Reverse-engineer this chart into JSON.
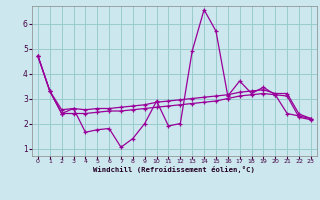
{
  "xlabel": "Windchill (Refroidissement éolien,°C)",
  "bg_color": "#cce8ee",
  "line_color": "#990099",
  "grid_color": "#99cccc",
  "xlim": [
    -0.5,
    23.5
  ],
  "ylim": [
    0.7,
    6.7
  ],
  "yticks": [
    1,
    2,
    3,
    4,
    5,
    6
  ],
  "xticks": [
    0,
    1,
    2,
    3,
    4,
    5,
    6,
    7,
    8,
    9,
    10,
    11,
    12,
    13,
    14,
    15,
    16,
    17,
    18,
    19,
    20,
    21,
    22,
    23
  ],
  "line1_x": [
    0,
    1,
    2,
    3,
    4,
    5,
    6,
    7,
    8,
    9,
    10,
    11,
    12,
    13,
    14,
    15,
    16,
    17,
    18,
    19,
    20,
    21,
    22,
    23
  ],
  "line1_y": [
    4.7,
    3.3,
    2.4,
    2.6,
    1.65,
    1.75,
    1.8,
    1.05,
    1.4,
    2.0,
    2.9,
    1.9,
    2.0,
    4.9,
    6.55,
    5.7,
    3.1,
    3.7,
    3.2,
    3.45,
    3.15,
    2.4,
    2.3,
    2.2
  ],
  "line2_x": [
    0,
    1,
    2,
    3,
    4,
    5,
    6,
    7,
    8,
    9,
    10,
    11,
    12,
    13,
    14,
    15,
    16,
    17,
    18,
    19,
    20,
    21,
    22,
    23
  ],
  "line2_y": [
    4.7,
    3.3,
    2.55,
    2.6,
    2.55,
    2.6,
    2.6,
    2.65,
    2.7,
    2.75,
    2.85,
    2.9,
    2.95,
    3.0,
    3.05,
    3.1,
    3.15,
    3.25,
    3.3,
    3.35,
    3.2,
    3.2,
    2.38,
    2.2
  ],
  "line3_x": [
    0,
    1,
    2,
    3,
    4,
    5,
    6,
    7,
    8,
    9,
    10,
    11,
    12,
    13,
    14,
    15,
    16,
    17,
    18,
    19,
    20,
    21,
    22,
    23
  ],
  "line3_y": [
    4.7,
    3.3,
    2.4,
    2.4,
    2.4,
    2.45,
    2.5,
    2.5,
    2.55,
    2.6,
    2.65,
    2.7,
    2.75,
    2.8,
    2.85,
    2.9,
    3.0,
    3.1,
    3.15,
    3.2,
    3.15,
    3.1,
    2.25,
    2.15
  ]
}
